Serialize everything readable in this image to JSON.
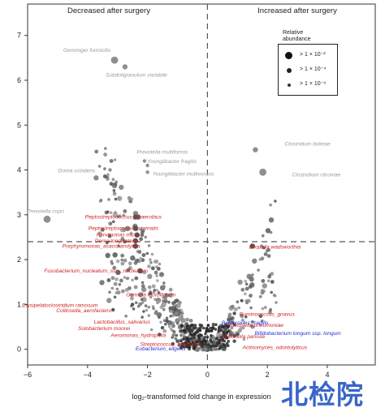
{
  "chart_data": {
    "type": "scatter",
    "panel_titles": {
      "left": "Decreased after surgery",
      "right": "Increased after surgery"
    },
    "xlabel": "log₂-transformed fold change in expression",
    "ylabel": "",
    "xlim": [
      -6,
      5.6
    ],
    "ylim": [
      -0.35,
      7.7
    ],
    "x_ticks": [
      -6,
      -4,
      -2,
      0,
      2,
      4
    ],
    "x_tick_labels": [
      "−6",
      "−4",
      "−2",
      "0",
      "2",
      "4"
    ],
    "y_ticks": [
      0,
      1,
      2,
      3,
      4,
      5,
      6,
      7
    ],
    "y_tick_labels": [
      "0",
      "1",
      "2",
      "3",
      "4",
      "5",
      "6",
      "7"
    ],
    "threshold_x": 0,
    "threshold_y": 2.4,
    "legend": {
      "title": "Relative abundance",
      "entries": [
        "> 1 × 10⁻²",
        "> 1 × 10⁻⁴",
        "> 1 × 10⁻⁶"
      ]
    },
    "labeled_points": [
      {
        "label": "Gemmiger formicilis",
        "x": -3.1,
        "y": 6.45,
        "size": "large",
        "group": "grey"
      },
      {
        "label": "Subdoligranulum variabile",
        "x": -2.75,
        "y": 6.3,
        "size": "medium",
        "group": "grey"
      },
      {
        "label": "Prevotella multiformis",
        "x": -2.1,
        "y": 4.2,
        "size": "small",
        "group": "grey"
      },
      {
        "label": "Youngiibacter fragilis",
        "x": -2.0,
        "y": 4.1,
        "size": "small",
        "group": "grey"
      },
      {
        "label": "Youngiibacter multivorans",
        "x": -2.0,
        "y": 3.95,
        "size": "small",
        "group": "grey"
      },
      {
        "label": "Dorea scindens",
        "x": -3.25,
        "y": 4.0,
        "size": "small",
        "group": "grey"
      },
      {
        "label": "Clostridium bolteae",
        "x": 1.6,
        "y": 4.45,
        "size": "medium",
        "group": "grey"
      },
      {
        "label": "Clostridium citroniae",
        "x": 1.85,
        "y": 3.95,
        "size": "large",
        "group": "grey"
      },
      {
        "label": "Prevotella copri",
        "x": -5.35,
        "y": 2.9,
        "size": "large",
        "group": "grey"
      },
      {
        "label": "Peptostreptococcus_anaerobius",
        "x": -2.4,
        "y": 2.95,
        "size": "medium",
        "group": "red"
      },
      {
        "label": "Peptostreptococcus_stomatis",
        "x": -2.4,
        "y": 2.7,
        "size": "medium",
        "group": "red"
      },
      {
        "label": "Parvimonas micra",
        "x": -2.35,
        "y": 2.55,
        "size": "medium",
        "group": "red"
      },
      {
        "label": "Dorea longicatena",
        "x": -2.4,
        "y": 2.42,
        "size": "medium",
        "group": "red"
      },
      {
        "label": "Porphyromonas_asaccharolytica",
        "x": -2.4,
        "y": 2.3,
        "size": "medium",
        "group": "red"
      },
      {
        "label": "Fusobacterium_nucleatum_ssp._nucleatum",
        "x": -2.25,
        "y": 1.75,
        "size": "medium",
        "group": "red"
      },
      {
        "label": "Bilophila wadsworthia",
        "x": 1.5,
        "y": 2.3,
        "size": "medium",
        "group": "red"
      },
      {
        "label": "Gemella morbillorum",
        "x": -1.9,
        "y": 1.25,
        "size": "small",
        "group": "red"
      },
      {
        "label": "Erysipelatoclostridium ramosum",
        "x": -2.5,
        "y": 1.0,
        "size": "small",
        "group": "red"
      },
      {
        "label": "Collinsella_aerofaciens",
        "x": -3.15,
        "y": 0.88,
        "size": "small",
        "group": "red"
      },
      {
        "label": "Lactobacillus_salivarius",
        "x": -1.35,
        "y": 0.63,
        "size": "small",
        "group": "red"
      },
      {
        "label": "Solobacterium moorei",
        "x": -1.5,
        "y": 0.48,
        "size": "small",
        "group": "red"
      },
      {
        "label": "Aeromonas_hydrophila",
        "x": -1.6,
        "y": 0.33,
        "size": "small",
        "group": "red"
      },
      {
        "label": "Streptococcus_anginosus",
        "x": -1.0,
        "y": 0.18,
        "size": "small",
        "group": "red"
      },
      {
        "label": "Ruminococcus_gnavus",
        "x": 0.9,
        "y": 0.8,
        "size": "small",
        "group": "red"
      },
      {
        "label": "Klebsiella pneumoniae",
        "x": 0.9,
        "y": 0.55,
        "size": "small",
        "group": "red"
      },
      {
        "label": "Veillonella parvula",
        "x": 0.9,
        "y": 0.3,
        "size": "small",
        "group": "red"
      },
      {
        "label": "Actinomyces_odontolyticus",
        "x": 0.9,
        "y": 0.18,
        "size": "small",
        "group": "red"
      },
      {
        "label": "Bacteroides_fragilis",
        "x": 0.2,
        "y": 0.55,
        "size": "small",
        "group": "blue"
      },
      {
        "label": "Bifidobacterium longum ssp. longum",
        "x": 0.6,
        "y": 0.45,
        "size": "small",
        "group": "blue"
      },
      {
        "label": "Eubacterium_eligens",
        "x": -1.15,
        "y": 0.12,
        "size": "small",
        "group": "blue"
      }
    ]
  },
  "watermark": "北检院"
}
